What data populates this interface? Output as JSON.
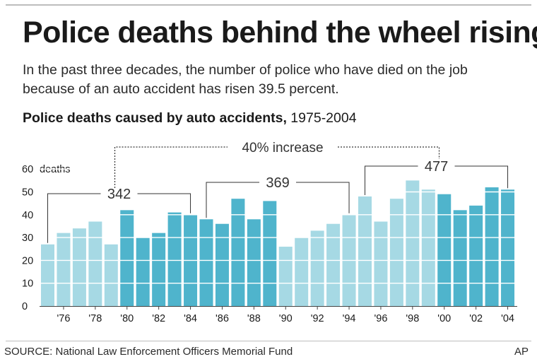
{
  "headline": "Police deaths behind the wheel rising",
  "dek": "In the past three decades, the number of police who have died on the job because of an auto accident has risen 39.5 percent.",
  "subhead": {
    "bold": "Police deaths caused by auto accidents,",
    "range": " 1975-2004"
  },
  "source": "SOURCE: National Law Enforcement Officers Memorial Fund",
  "credit": "AP",
  "colors": {
    "light_bar": "#a6d9e4",
    "dark_bar": "#4fb4cc",
    "bracket": "#333333"
  },
  "chart_data": {
    "type": "bar",
    "x": [
      1975,
      1976,
      1977,
      1978,
      1979,
      1980,
      1981,
      1982,
      1983,
      1984,
      1985,
      1986,
      1987,
      1988,
      1989,
      1990,
      1991,
      1992,
      1993,
      1994,
      1995,
      1996,
      1997,
      1998,
      1999,
      2000,
      2001,
      2002,
      2003,
      2004
    ],
    "values": [
      27,
      32,
      34,
      37,
      27,
      42,
      30,
      32,
      41,
      40,
      38,
      36,
      47,
      38,
      46,
      26,
      30,
      33,
      36,
      40,
      48,
      37,
      47,
      55,
      51,
      49,
      42,
      44,
      52,
      51
    ],
    "shade": [
      "light",
      "light",
      "light",
      "light",
      "light",
      "dark",
      "dark",
      "dark",
      "dark",
      "dark",
      "dark",
      "dark",
      "dark",
      "dark",
      "dark",
      "light",
      "light",
      "light",
      "light",
      "light",
      "light",
      "light",
      "light",
      "light",
      "light",
      "dark",
      "dark",
      "dark",
      "dark",
      "dark"
    ],
    "x_tick_labels": [
      "'76",
      "'78",
      "'80",
      "'82",
      "'84",
      "'86",
      "'88",
      "'90",
      "'92",
      "'94",
      "'96",
      "'98",
      "'00",
      "'02",
      "'04"
    ],
    "x_tick_years": [
      1976,
      1978,
      1980,
      1982,
      1984,
      1986,
      1988,
      1990,
      1992,
      1994,
      1996,
      1998,
      2000,
      2002,
      2004
    ],
    "y_ticks": [
      0,
      10,
      20,
      30,
      40,
      50,
      60
    ],
    "y_unit_label": "deaths",
    "ylim": [
      0,
      60
    ],
    "decade_totals": [
      {
        "label": "342",
        "from": 1975,
        "to": 1984
      },
      {
        "label": "369",
        "from": 1985,
        "to": 1994
      },
      {
        "label": "477",
        "from": 1995,
        "to": 2004
      }
    ],
    "comparison": {
      "label": "40% increase",
      "from_decade": 0,
      "to_decade": 2
    },
    "grid": true
  }
}
